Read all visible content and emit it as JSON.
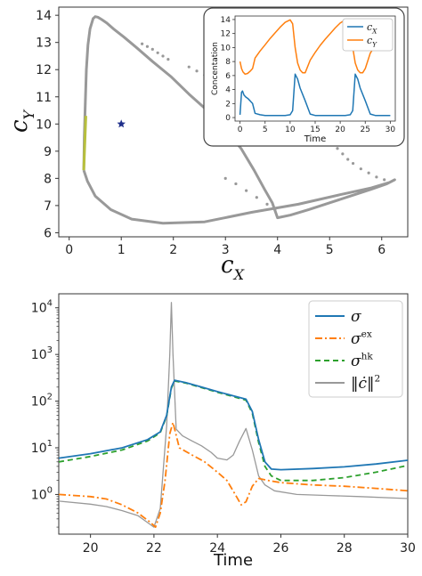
{
  "chart_data": [
    {
      "id": "phase",
      "type": "line",
      "xlabel_base": "c",
      "xlabel_sub": "X",
      "ylabel_base": "c",
      "ylabel_sub": "Y",
      "xlim": [
        -0.2,
        6.5
      ],
      "ylim": [
        5.85,
        14.3
      ],
      "xticks": [
        0,
        1,
        2,
        3,
        4,
        5,
        6
      ],
      "yticks": [
        6,
        7,
        8,
        9,
        10,
        11,
        12,
        13,
        14
      ],
      "colors": {
        "cycle": "#999999",
        "dots": "#999999",
        "yellow": "#b7bf3c",
        "star": "#1f2f8a"
      },
      "series": [
        {
          "x": [
            0.28,
            0.29,
            0.31,
            0.33,
            0.36,
            0.4,
            0.46,
            0.5,
            0.55,
            0.62,
            0.72,
            0.85,
            1.05,
            1.3,
            1.6,
            1.95,
            2.3,
            2.65,
            3.0,
            3.3,
            3.55,
            3.75,
            3.9,
            4.0,
            4.25,
            4.6,
            5.0,
            5.4,
            5.8,
            6.1,
            6.25,
            6.15,
            5.8,
            5.2,
            4.4,
            3.5,
            2.6,
            1.8,
            1.2,
            0.8,
            0.5,
            0.35,
            0.28
          ],
          "y": [
            8.3,
            9.5,
            10.8,
            12.0,
            12.9,
            13.5,
            13.88,
            13.95,
            13.93,
            13.85,
            13.72,
            13.5,
            13.2,
            12.8,
            12.3,
            11.75,
            11.1,
            10.5,
            9.8,
            9.1,
            8.3,
            7.6,
            7.1,
            6.55,
            6.65,
            6.85,
            7.1,
            7.35,
            7.6,
            7.8,
            7.95,
            7.85,
            7.65,
            7.4,
            7.05,
            6.75,
            6.4,
            6.35,
            6.5,
            6.85,
            7.35,
            7.9,
            8.3
          ]
        },
        {
          "x": [
            0.28,
            0.29,
            0.3,
            0.31,
            0.32
          ],
          "y": [
            8.3,
            8.8,
            9.3,
            9.8,
            10.3
          ]
        }
      ],
      "scatter": [
        {
          "x": [
            1.4,
            1.5,
            1.6,
            1.7,
            1.8,
            1.9,
            2.3,
            2.45,
            2.6,
            2.95,
            3.15
          ],
          "y": [
            12.95,
            12.85,
            12.75,
            12.62,
            12.5,
            12.38,
            12.1,
            11.95,
            11.8,
            11.45,
            11.2
          ]
        },
        {
          "x": [
            4.85,
            4.95,
            5.05,
            5.15,
            5.25,
            5.35,
            5.45,
            5.6,
            5.75,
            5.9,
            6.05
          ],
          "y": [
            9.7,
            9.5,
            9.3,
            9.1,
            8.9,
            8.7,
            8.55,
            8.35,
            8.2,
            8.05,
            7.95
          ]
        },
        {
          "x": [
            3.0,
            3.2,
            3.4,
            3.6,
            3.8,
            3.95
          ],
          "y": [
            8.0,
            7.8,
            7.55,
            7.3,
            7.05,
            6.85
          ]
        }
      ],
      "marker": {
        "x": 1.0,
        "y": 10.0
      }
    },
    {
      "id": "inset",
      "type": "line",
      "xlabel": "Time",
      "ylabel": "Concentation",
      "xlim": [
        -1,
        31
      ],
      "ylim": [
        -0.5,
        14.5
      ],
      "xticks": [
        0,
        5,
        10,
        15,
        20,
        25,
        30
      ],
      "yticks": [
        0,
        2,
        4,
        6,
        8,
        10,
        12,
        14
      ],
      "legend": [
        {
          "base": "c",
          "sub": "X",
          "color": "#1f77b4"
        },
        {
          "base": "c",
          "sub": "Y",
          "color": "#ff7f0e"
        }
      ],
      "series": [
        {
          "name": "cX",
          "color": "#1f77b4",
          "x": [
            0,
            0.3,
            0.5,
            0.8,
            1.2,
            1.6,
            2,
            2.5,
            3,
            4,
            5,
            6,
            7,
            8,
            9,
            10,
            10.5,
            11,
            11.5,
            12,
            13,
            14,
            15,
            16,
            17,
            18,
            19,
            20,
            21,
            22,
            22.5,
            23,
            23.5,
            24,
            25,
            26,
            27,
            28,
            29,
            30
          ],
          "y": [
            0.4,
            3.6,
            3.8,
            3.2,
            2.9,
            2.7,
            2.4,
            2.0,
            0.6,
            0.4,
            0.3,
            0.3,
            0.3,
            0.3,
            0.3,
            0.4,
            1.0,
            6.2,
            5.5,
            4.2,
            2.4,
            0.5,
            0.3,
            0.3,
            0.3,
            0.3,
            0.3,
            0.3,
            0.3,
            0.4,
            1.0,
            6.2,
            5.5,
            4.2,
            2.4,
            0.5,
            0.3,
            0.3,
            0.3,
            0.3
          ]
        },
        {
          "name": "cY",
          "color": "#ff7f0e",
          "x": [
            0,
            0.3,
            0.6,
            1,
            1.5,
            2,
            2.5,
            3,
            4,
            5,
            6,
            7,
            8,
            9,
            10,
            10.5,
            11,
            11.5,
            12,
            12.5,
            13,
            14,
            15,
            16,
            17,
            18,
            19,
            20,
            21,
            22,
            22.5,
            23,
            23.5,
            24,
            24.5,
            25,
            26,
            27,
            28,
            29,
            30
          ],
          "y": [
            8.0,
            7.0,
            6.5,
            6.2,
            6.3,
            6.6,
            7.0,
            8.5,
            9.5,
            10.4,
            11.3,
            12.1,
            12.9,
            13.6,
            13.95,
            13.4,
            10.0,
            7.8,
            6.8,
            6.4,
            6.4,
            8.2,
            9.3,
            10.3,
            11.2,
            12.0,
            12.8,
            13.5,
            13.95,
            13.3,
            10.0,
            7.8,
            6.8,
            6.4,
            6.4,
            7.0,
            9.2,
            10.3,
            11.2,
            12.0,
            12.8
          ]
        }
      ]
    },
    {
      "id": "entropy",
      "type": "line",
      "xlabel": "Time",
      "xlim": [
        19,
        30
      ],
      "ylim_log10": [
        -0.85,
        4.3
      ],
      "yscale": "log",
      "xticks": [
        20,
        22,
        24,
        26,
        28,
        30
      ],
      "ytick_exponents": [
        0,
        1,
        2,
        3,
        4
      ],
      "legend": [
        {
          "base": "σ",
          "sup": "",
          "color": "#1f77b4",
          "dash": ""
        },
        {
          "base": "σ",
          "sup": "ex",
          "color": "#ff7f0e",
          "dash": "8,3,2,3"
        },
        {
          "base": "σ",
          "sup": "hk",
          "color": "#2ca02c",
          "dash": "6,4"
        },
        {
          "base": "‖ċ‖",
          "sup": "2",
          "color": "#999999",
          "dash": ""
        }
      ],
      "series": [
        {
          "name": "σ",
          "color": "#1f77b4",
          "dash": "",
          "x": [
            19,
            20,
            21,
            21.8,
            22.2,
            22.4,
            22.55,
            22.65,
            23,
            23.5,
            24,
            24.5,
            24.9,
            25.1,
            25.3,
            25.5,
            25.7,
            26,
            27,
            28,
            29,
            30
          ],
          "y": [
            6,
            7.5,
            10,
            15,
            22,
            50,
            200,
            280,
            250,
            200,
            160,
            130,
            110,
            60,
            15,
            5,
            3.5,
            3.4,
            3.6,
            3.9,
            4.5,
            5.4
          ]
        },
        {
          "name": "σex",
          "color": "#ff7f0e",
          "dash": "8,3,2,3",
          "x": [
            19,
            20,
            20.5,
            21,
            21.5,
            21.9,
            22.05,
            22.2,
            22.35,
            22.5,
            22.6,
            22.8,
            23.2,
            23.6,
            24,
            24.3,
            24.6,
            24.75,
            24.9,
            25.1,
            25.3,
            25.6,
            26,
            27,
            28,
            29,
            30
          ],
          "y": [
            1.0,
            0.9,
            0.8,
            0.6,
            0.4,
            0.25,
            0.2,
            0.4,
            2.0,
            20,
            35,
            10,
            7,
            5,
            3,
            2,
            0.9,
            0.6,
            0.7,
            1.5,
            2.2,
            2.0,
            1.8,
            1.6,
            1.5,
            1.35,
            1.2
          ]
        },
        {
          "name": "σhk",
          "color": "#2ca02c",
          "dash": "6,4",
          "x": [
            19,
            20,
            21,
            21.8,
            22.2,
            22.4,
            22.55,
            22.65,
            23,
            23.5,
            24,
            24.5,
            24.9,
            25.1,
            25.3,
            25.5,
            25.7,
            26,
            27,
            28,
            29,
            30
          ],
          "y": [
            5,
            6.5,
            9,
            14,
            21,
            48,
            190,
            270,
            245,
            195,
            155,
            125,
            105,
            55,
            13,
            4,
            2.5,
            2.0,
            2.0,
            2.3,
            3.0,
            4.2
          ]
        },
        {
          "name": "‖ċ‖²",
          "color": "#999999",
          "dash": "",
          "x": [
            19,
            20,
            20.5,
            21,
            21.5,
            21.8,
            22.0,
            22.2,
            22.4,
            22.5,
            22.55,
            22.6,
            22.7,
            22.9,
            23.2,
            23.5,
            23.8,
            24.0,
            24.3,
            24.5,
            24.7,
            24.9,
            25.1,
            25.3,
            25.5,
            25.8,
            26.5,
            27.5,
            28.5,
            30
          ],
          "y": [
            0.72,
            0.62,
            0.55,
            0.45,
            0.35,
            0.25,
            0.2,
            0.5,
            30,
            1000,
            13000,
            1000,
            25,
            18,
            14,
            11,
            8,
            6,
            5.5,
            7,
            14,
            26,
            9,
            2.5,
            1.6,
            1.2,
            1.0,
            0.95,
            0.9,
            0.82
          ]
        }
      ]
    }
  ]
}
